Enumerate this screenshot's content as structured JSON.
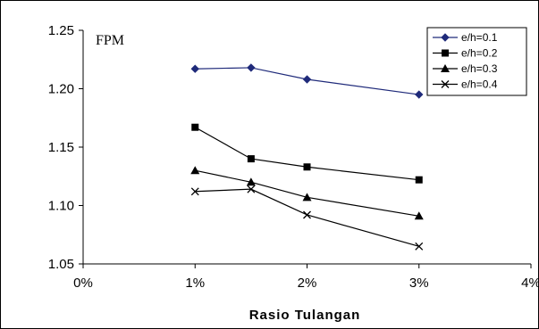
{
  "chart_data": {
    "type": "line",
    "annotation": "FPM",
    "title": "",
    "xlabel": "Rasio Tulangan",
    "ylabel": "",
    "x": [
      0.01,
      0.015,
      0.02,
      0.03
    ],
    "xlim": [
      0,
      0.04
    ],
    "ylim": [
      1.05,
      1.25
    ],
    "x_ticks": [
      0,
      0.01,
      0.02,
      0.03,
      0.04
    ],
    "x_tick_labels": [
      "0%",
      "1%",
      "2%",
      "3%",
      "4%"
    ],
    "y_ticks": [
      1.05,
      1.1,
      1.15,
      1.2,
      1.25
    ],
    "y_tick_labels": [
      "1.05",
      "1.10",
      "1.15",
      "1.20",
      "1.25"
    ],
    "grid": false,
    "legend_position": "top-right",
    "series": [
      {
        "name": "e/h=0.1",
        "marker": "diamond",
        "color": "#1f2a7a",
        "values": [
          1.217,
          1.218,
          1.208,
          1.195
        ]
      },
      {
        "name": "e/h=0.2",
        "marker": "square",
        "color": "#000000",
        "values": [
          1.167,
          1.14,
          1.133,
          1.122
        ]
      },
      {
        "name": "e/h=0.3",
        "marker": "triangle",
        "color": "#000000",
        "values": [
          1.13,
          1.12,
          1.107,
          1.091
        ]
      },
      {
        "name": "e/h=0.4",
        "marker": "x",
        "color": "#000000",
        "values": [
          1.112,
          1.114,
          1.092,
          1.065
        ]
      }
    ]
  }
}
